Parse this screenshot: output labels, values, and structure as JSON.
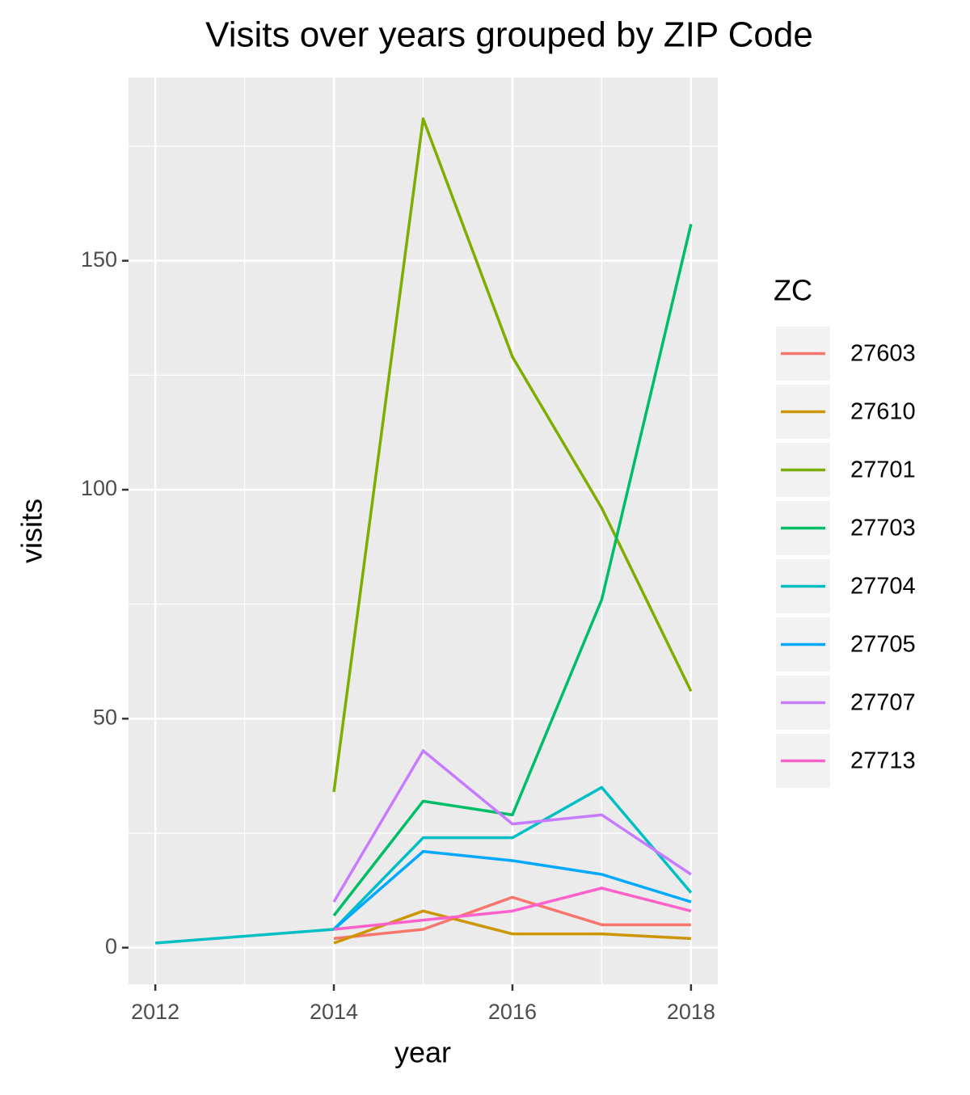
{
  "chart_data": {
    "type": "line",
    "title": "Visits over years grouped by ZIP Code",
    "x_label": "year",
    "y_label": "visits",
    "legend_title": "ZC",
    "x": [
      2012,
      2014,
      2015,
      2016,
      2017,
      2018
    ],
    "series": [
      {
        "name": "27603",
        "color": "#F8766D",
        "values": [
          null,
          2,
          4,
          11,
          5,
          5
        ]
      },
      {
        "name": "27610",
        "color": "#CD9600",
        "values": [
          null,
          1,
          8,
          3,
          3,
          2
        ]
      },
      {
        "name": "27701",
        "color": "#7CAE00",
        "values": [
          null,
          34,
          181,
          129,
          96,
          56
        ]
      },
      {
        "name": "27703",
        "color": "#00BE67",
        "values": [
          null,
          7,
          32,
          29,
          76,
          158
        ]
      },
      {
        "name": "27704",
        "color": "#00BFC4",
        "values": [
          1,
          4,
          24,
          24,
          35,
          12
        ]
      },
      {
        "name": "27705",
        "color": "#00A9FF",
        "values": [
          null,
          4,
          21,
          19,
          16,
          10
        ]
      },
      {
        "name": "27707",
        "color": "#C77CFF",
        "values": [
          null,
          10,
          43,
          27,
          29,
          16
        ]
      },
      {
        "name": "27713",
        "color": "#FF61CC",
        "values": [
          null,
          4,
          6,
          8,
          13,
          8
        ]
      }
    ],
    "xlim": [
      2011.7,
      2018.3
    ],
    "xticks": [
      2012,
      2014,
      2016,
      2018
    ],
    "ylim": [
      -8,
      190
    ],
    "yticks": [
      0,
      50,
      100,
      150
    ],
    "grid": true
  }
}
